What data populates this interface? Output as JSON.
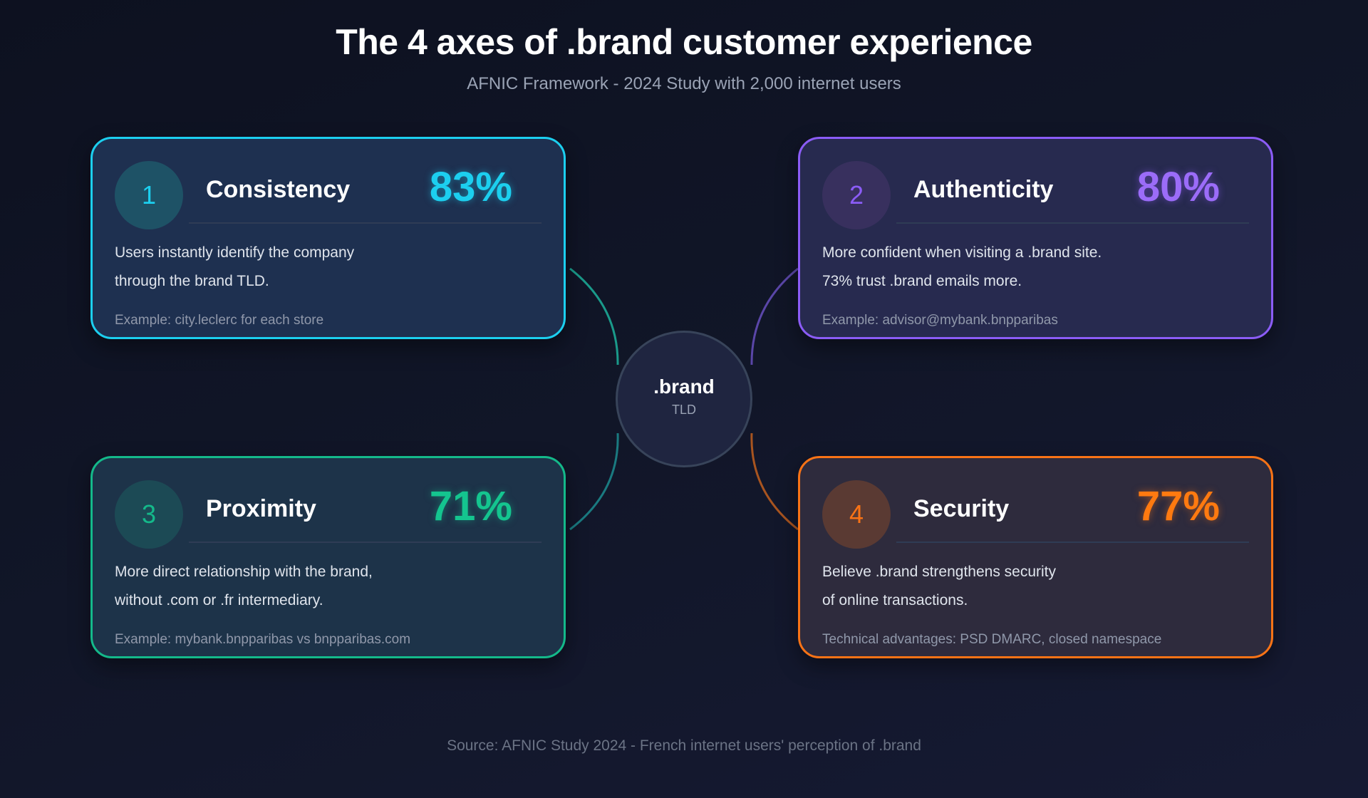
{
  "header": {
    "title": "The 4 axes of .brand customer experience",
    "subtitle": "AFNIC Framework - 2024 Study with 2,000 internet users"
  },
  "hub": {
    "label": ".brand",
    "sublabel": "TLD"
  },
  "axes": [
    {
      "number": "1",
      "name": "Consistency",
      "percent": "83%",
      "desc1": "Users instantly identify the company",
      "desc2": "through the brand TLD.",
      "example": "Example: city.leclerc for each store",
      "color": "#1ccfef"
    },
    {
      "number": "2",
      "name": "Authenticity",
      "percent": "80%",
      "desc1": "More confident when visiting a .brand site.",
      "desc2": "73% trust .brand emails more.",
      "example": "Example: advisor@mybank.bnpparibas",
      "color": "#8b5cf6"
    },
    {
      "number": "3",
      "name": "Proximity",
      "percent": "71%",
      "desc1": "More direct relationship with the brand,",
      "desc2": "without .com or .fr intermediary.",
      "example": "Example: mybank.bnpparibas vs bnpparibas.com",
      "color": "#14b98a"
    },
    {
      "number": "4",
      "name": "Security",
      "percent": "77%",
      "desc1": "Believe .brand strengthens security",
      "desc2": "of online transactions.",
      "example": "Technical advantages: PSD DMARC, closed namespace",
      "color": "#f97316"
    }
  ],
  "footer": {
    "source": "Source: AFNIC Study 2024 - French internet users' perception of .brand"
  }
}
